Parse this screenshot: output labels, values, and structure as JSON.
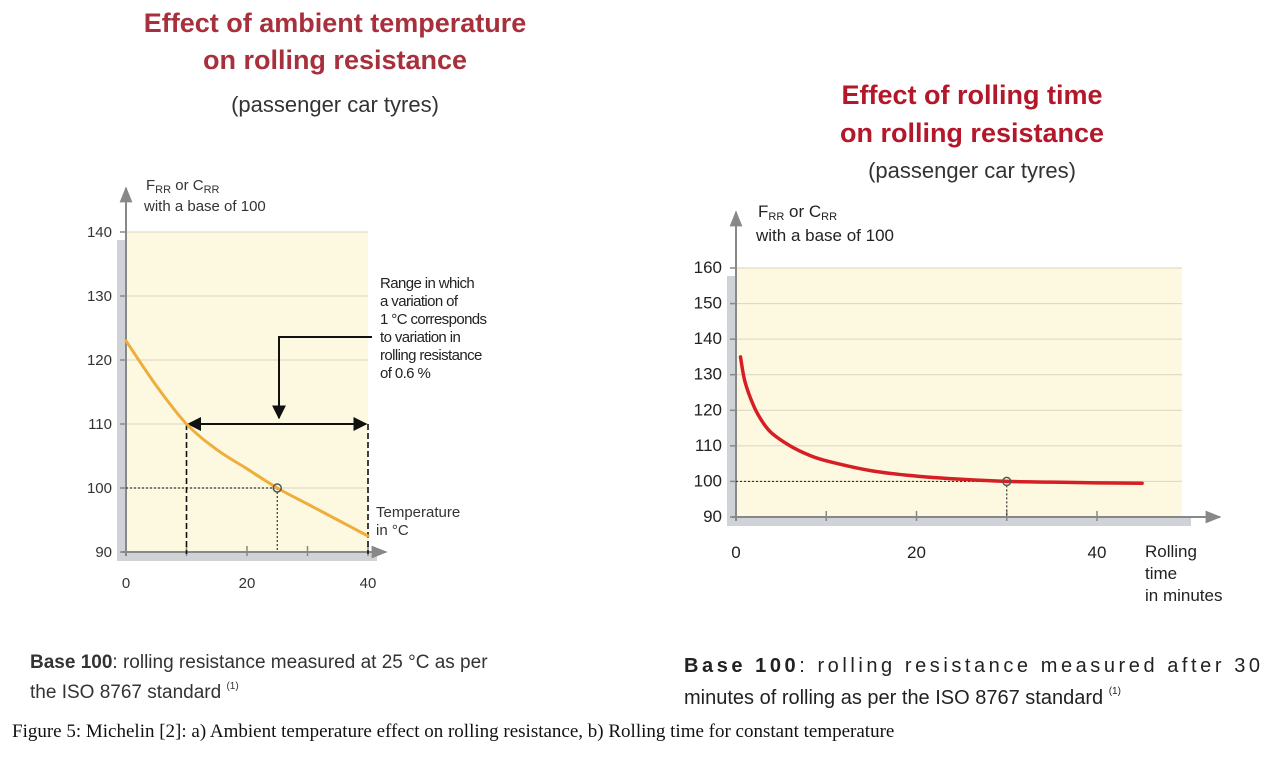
{
  "colors": {
    "left_title": "#a8303c",
    "right_title": "#b3172a",
    "left_curve": "#efae3c",
    "right_curve": "#d61f24",
    "plot_bg": "#fdf9e1",
    "grid": "#d8d4c0"
  },
  "chart_data": [
    {
      "type": "line",
      "title": "Effect of ambient temperature on rolling resistance",
      "title_lines": [
        "Effect of ambient temperature",
        "on rolling resistance"
      ],
      "subtitle": "(passenger car tyres)",
      "ylabel_parts": [
        {
          "t": "F"
        },
        {
          "t": "RR",
          "sub": true
        },
        {
          "t": " or C"
        },
        {
          "t": "RR",
          "sub": true
        }
      ],
      "ylabel_line2": "with a base of 100",
      "xlabel_lines": [
        "Temperature",
        "in °C"
      ],
      "xlim": [
        0,
        40
      ],
      "ylim": [
        90,
        140
      ],
      "yticks": [
        90,
        100,
        110,
        120,
        130,
        140
      ],
      "xticks": [
        0,
        20,
        40
      ],
      "xminor": [
        10,
        30
      ],
      "grid": true,
      "series": [
        {
          "x": [
            0,
            5,
            10,
            15,
            20,
            25,
            30,
            35,
            40
          ],
          "y": [
            123,
            116,
            110,
            106,
            103,
            100,
            97.5,
            95,
            92.5
          ]
        }
      ],
      "reference_point": {
        "x": 25,
        "y": 100
      },
      "range": {
        "from": 10,
        "to": 40,
        "level": 110
      },
      "annotation_lines": [
        "Range in which",
        "a variation of",
        "1 °C corresponds",
        "to variation in",
        "rolling resistance",
        "of 0.6 %"
      ],
      "base_note": {
        "bold": "Base 100",
        "rest": ": rolling resistance measured at 25 °C as per",
        "line2": "the ISO 8767 standard",
        "sup": "(1)"
      }
    },
    {
      "type": "line",
      "title": "Effect of rolling time on rolling resistance",
      "title_lines": [
        "Effect of rolling time",
        "on rolling resistance"
      ],
      "subtitle": "(passenger car tyres)",
      "ylabel_parts": [
        {
          "t": "F"
        },
        {
          "t": "RR",
          "sub": true
        },
        {
          "t": " or C"
        },
        {
          "t": "RR",
          "sub": true
        }
      ],
      "ylabel_line2": "with a base of 100",
      "xlabel_lines": [
        "Rolling",
        "time",
        "in minutes"
      ],
      "xlim": [
        0,
        45
      ],
      "ylim": [
        90,
        160
      ],
      "yticks": [
        90,
        100,
        110,
        120,
        130,
        140,
        150,
        160
      ],
      "xticks": [
        0,
        20,
        40
      ],
      "xminor": [
        10,
        30
      ],
      "grid": true,
      "series": [
        {
          "x": [
            0.5,
            1,
            2,
            3,
            4,
            6,
            8,
            10,
            15,
            20,
            25,
            30,
            35,
            40,
            45
          ],
          "y": [
            135,
            128,
            121,
            116.5,
            113.5,
            110,
            107.5,
            105.8,
            103,
            101.5,
            100.6,
            100,
            99.8,
            99.6,
            99.5
          ]
        }
      ],
      "reference_point": {
        "x": 30,
        "y": 100
      },
      "base_note": {
        "bold": "Base 100",
        "rest": ": rolling resistance measured after 30",
        "line2": "minutes of rolling as per the ISO 8767 standard",
        "sup": "(1)"
      }
    }
  ],
  "caption": "Figure 5:  Michelin [2]:  a) Ambient temperature effect on rolling resistance, b) Rolling time for constant temperature"
}
